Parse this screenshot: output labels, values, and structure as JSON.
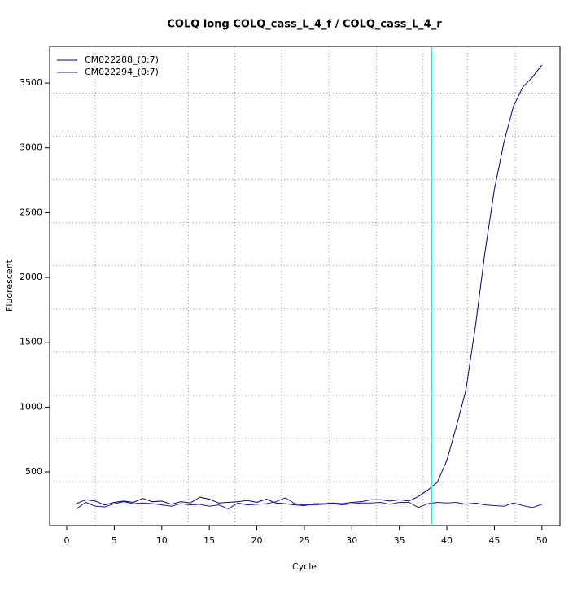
{
  "chart_data": {
    "type": "line",
    "title": "COLQ long COLQ_cass_L_4_f / COLQ_cass_L_4_r",
    "x_label": "Cycle",
    "y_label": "Fluorescent",
    "x": [
      1,
      2,
      3,
      4,
      5,
      6,
      7,
      8,
      9,
      10,
      11,
      12,
      13,
      14,
      15,
      16,
      17,
      18,
      19,
      20,
      21,
      22,
      23,
      24,
      25,
      26,
      27,
      28,
      29,
      30,
      31,
      32,
      33,
      34,
      35,
      36,
      37,
      38,
      39,
      40,
      41,
      42,
      43,
      44,
      45,
      46,
      47,
      48,
      49,
      50
    ],
    "series": [
      {
        "name": "CM022288_(0:7)",
        "color": "#000080",
        "values": [
          255,
          285,
          275,
          245,
          265,
          275,
          265,
          295,
          270,
          275,
          250,
          270,
          260,
          305,
          290,
          260,
          265,
          270,
          280,
          265,
          290,
          260,
          255,
          245,
          240,
          255,
          255,
          260,
          255,
          265,
          270,
          285,
          285,
          275,
          285,
          275,
          310,
          360,
          420,
          590,
          850,
          1130,
          1620,
          2190,
          2680,
          3040,
          3320,
          3470,
          3545,
          3640
        ]
      },
      {
        "name": "CM022294_(0:7)",
        "color": "#1c1c9c",
        "values": [
          215,
          265,
          235,
          230,
          255,
          270,
          255,
          260,
          255,
          245,
          235,
          255,
          245,
          250,
          235,
          245,
          215,
          260,
          245,
          250,
          255,
          270,
          300,
          255,
          245,
          245,
          250,
          255,
          245,
          255,
          260,
          260,
          265,
          250,
          265,
          265,
          225,
          255,
          265,
          260,
          265,
          250,
          260,
          245,
          240,
          235,
          260,
          240,
          225,
          250
        ]
      }
    ],
    "xlim": [
      -1.8,
      51.9
    ],
    "ylim": [
      86,
      3783
    ],
    "xticks": [
      0,
      5,
      10,
      15,
      20,
      25,
      30,
      35,
      40,
      45,
      50
    ],
    "yticks": [
      500,
      1000,
      1500,
      2000,
      2500,
      3000,
      3500
    ],
    "xgrid": [
      3,
      7.9,
      12.8,
      17.7,
      22.6,
      27.6,
      32.6,
      37.5,
      42.2,
      47.2
    ],
    "ygrid": [
      425,
      758,
      1091,
      1424,
      1757,
      2090,
      2423,
      2756,
      3089,
      3422
    ],
    "vline": 38.4,
    "vline_color": "#40e0d0",
    "legend": "top-left"
  }
}
